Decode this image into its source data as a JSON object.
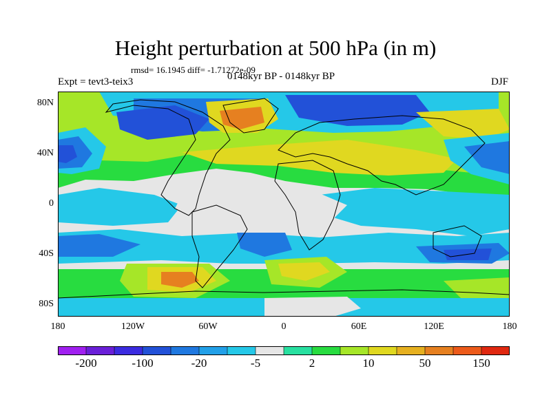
{
  "header": {
    "title": "Height perturbation at 500 hPa (in m)",
    "stats": "rmsd= 16.1945 diff= -1.71272e-09",
    "experiment": "Expt = tevt3-teix3",
    "period": "0148kyr BP - 0148kyr BP",
    "season": "DJF"
  },
  "axes": {
    "lat_labels": [
      "80N",
      "40N",
      "0",
      "40S",
      "80S"
    ],
    "lon_labels": [
      "180",
      "120W",
      "60W",
      "0",
      "60E",
      "120E",
      "180"
    ]
  },
  "colorbar": {
    "labels": [
      "-200",
      "-100",
      "-20",
      "-5",
      "2",
      "10",
      "50",
      "150"
    ],
    "colors": [
      "#a020f0",
      "#6a1fd8",
      "#3b2be0",
      "#2251d8",
      "#1f78e0",
      "#22a0e8",
      "#25c8e8",
      "#e6e6e6",
      "#28e0a0",
      "#28dc40",
      "#a6e628",
      "#e0d820",
      "#e6b020",
      "#e68020",
      "#ec5a1a",
      "#e02810"
    ]
  },
  "map_colors": {
    "neutral": "#e6e6e6",
    "light_blue": "#25c8e8",
    "mid_blue": "#22a0e8",
    "blue": "#1f78e0",
    "deep_blue": "#2251d8",
    "dark_blue": "#3b2be0",
    "teal": "#28e0a0",
    "green": "#28dc40",
    "yellow_green": "#a6e628",
    "yellow": "#e0d820",
    "orange": "#e6b020",
    "dark_orange": "#e68020",
    "coast": "#000000"
  }
}
